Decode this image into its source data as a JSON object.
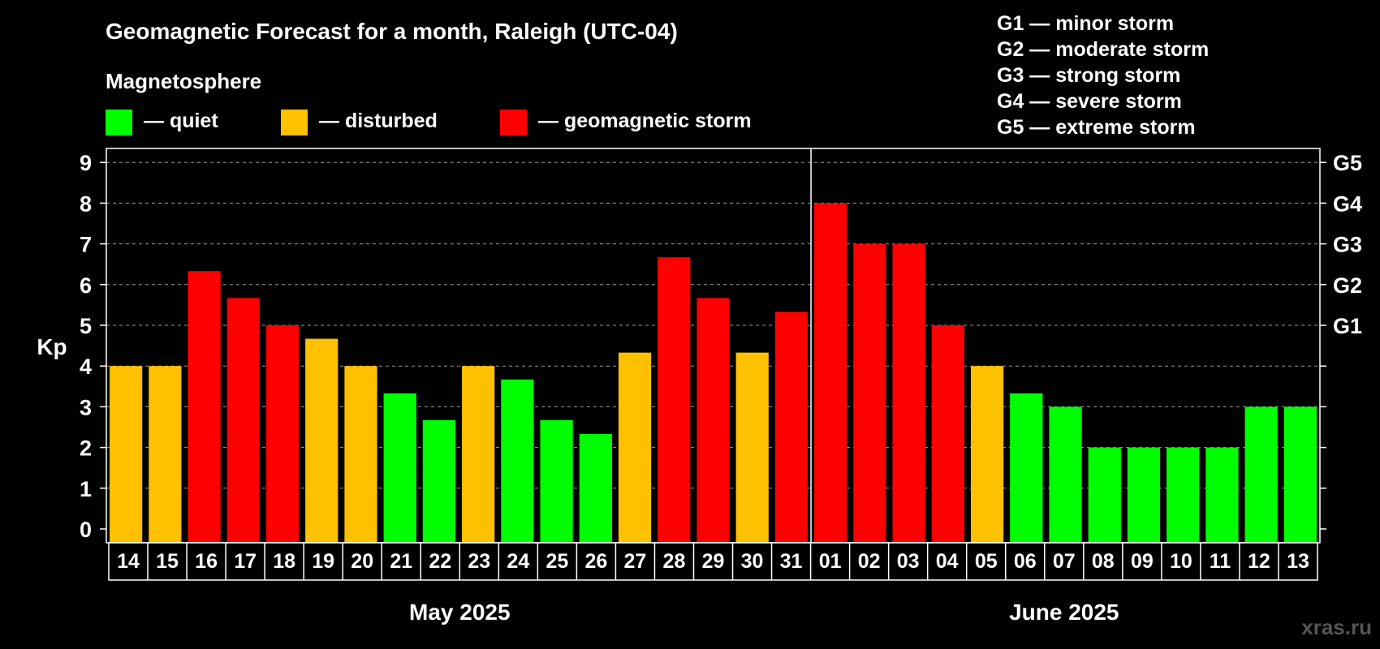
{
  "chart_data": {
    "type": "bar",
    "title": "Geomagnetic Forecast for a month, Raleigh (UTC-04)",
    "ylabel": "Kp",
    "ylim": [
      0,
      9
    ],
    "yticks": [
      "0",
      "1",
      "2",
      "3",
      "4",
      "5",
      "6",
      "7",
      "8",
      "9"
    ],
    "storm_levels": [
      {
        "label": "G1",
        "kp": 5
      },
      {
        "label": "G2",
        "kp": 6
      },
      {
        "label": "G3",
        "kp": 7
      },
      {
        "label": "G4",
        "kp": 8
      },
      {
        "label": "G5",
        "kp": 9
      }
    ],
    "legend_heading": "Magnetosphere",
    "legend": [
      {
        "key": "quiet",
        "label": "— quiet",
        "color": "#00ff00"
      },
      {
        "key": "disturbed",
        "label": "— disturbed",
        "color": "#ffc000"
      },
      {
        "key": "storm",
        "label": "— geomagnetic storm",
        "color": "#ff0000"
      }
    ],
    "storm_legend": [
      "G1 — minor storm",
      "G2 — moderate storm",
      "G3 — strong storm",
      "G4 — severe storm",
      "G5 — extreme storm"
    ],
    "months": [
      {
        "label": "May 2025",
        "days": 18
      },
      {
        "label": "June 2025",
        "days": 13
      }
    ],
    "categories": [
      "14",
      "15",
      "16",
      "17",
      "18",
      "19",
      "20",
      "21",
      "22",
      "23",
      "24",
      "25",
      "26",
      "27",
      "28",
      "29",
      "30",
      "31",
      "01",
      "02",
      "03",
      "04",
      "05",
      "06",
      "07",
      "08",
      "09",
      "10",
      "11",
      "12",
      "13"
    ],
    "values": [
      4,
      4,
      6.33,
      5.67,
      5,
      4.67,
      4,
      3.33,
      2.67,
      4,
      3.67,
      2.67,
      2.33,
      4.33,
      6.67,
      5.67,
      4.33,
      5.33,
      8,
      7,
      7,
      5,
      4,
      3.33,
      3,
      2,
      2,
      2,
      2,
      3,
      3
    ],
    "states": [
      "disturbed",
      "disturbed",
      "storm",
      "storm",
      "storm",
      "disturbed",
      "disturbed",
      "quiet",
      "quiet",
      "disturbed",
      "quiet",
      "quiet",
      "quiet",
      "disturbed",
      "storm",
      "storm",
      "disturbed",
      "storm",
      "storm",
      "storm",
      "storm",
      "storm",
      "disturbed",
      "quiet",
      "quiet",
      "quiet",
      "quiet",
      "quiet",
      "quiet",
      "quiet",
      "quiet"
    ],
    "grid": true
  },
  "watermark": "xras.ru"
}
